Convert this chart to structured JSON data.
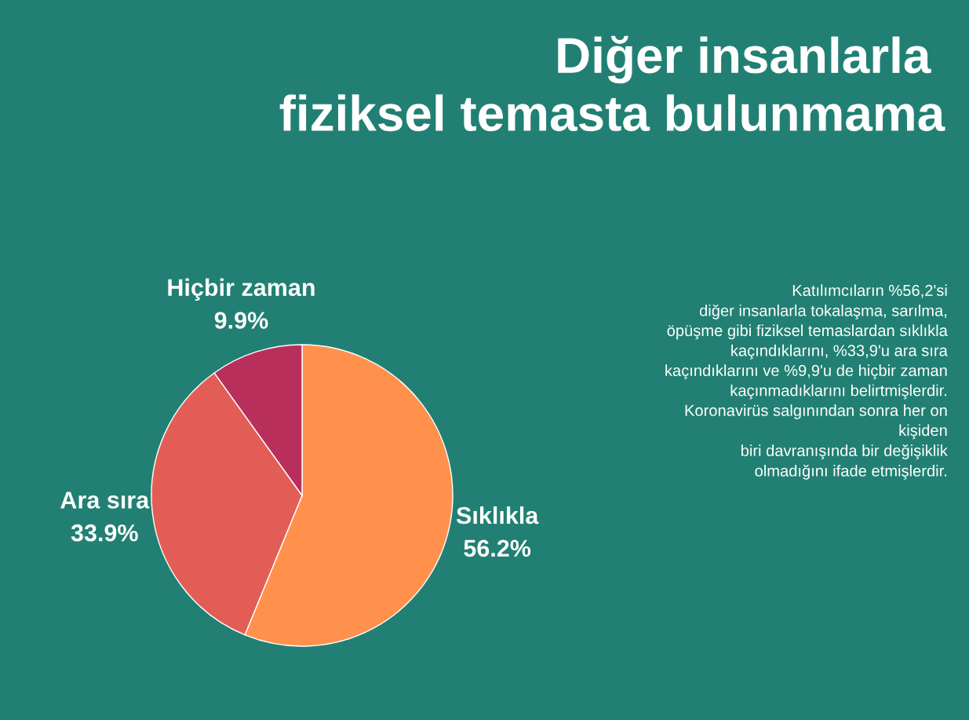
{
  "chart_data": {
    "type": "pie",
    "title": "Diğer insanlarla \nfiziksel temasta bulunmama",
    "categories": [
      "Sıklıkla",
      "Ara sıra",
      "Hiçbir zaman"
    ],
    "values": [
      56.2,
      33.9,
      9.9
    ],
    "value_labels": [
      "56.2%",
      "33.9%",
      "9.9%"
    ],
    "colors": [
      "#ff914d",
      "#e35d57",
      "#b82f5c"
    ],
    "annotations": [
      "Katılımcıların %56,2'si\ndiğer insanlarla tokalaşma, sarılma,\nöpüşme gibi fiziksel temaslardan sıklıkla\nkaçındıklarını, %33,9'u ara sıra\nkaçındıklarını ve %9,9'u de hiçbir zaman\nkaçınmadıklarını belirtmişlerdir.\nKoronavirüs salgınından sonra her on\nkişiden\nbiri davranışında bir değişiklik\nolmadığını ifade etmişlerdir."
    ],
    "legend": false
  }
}
